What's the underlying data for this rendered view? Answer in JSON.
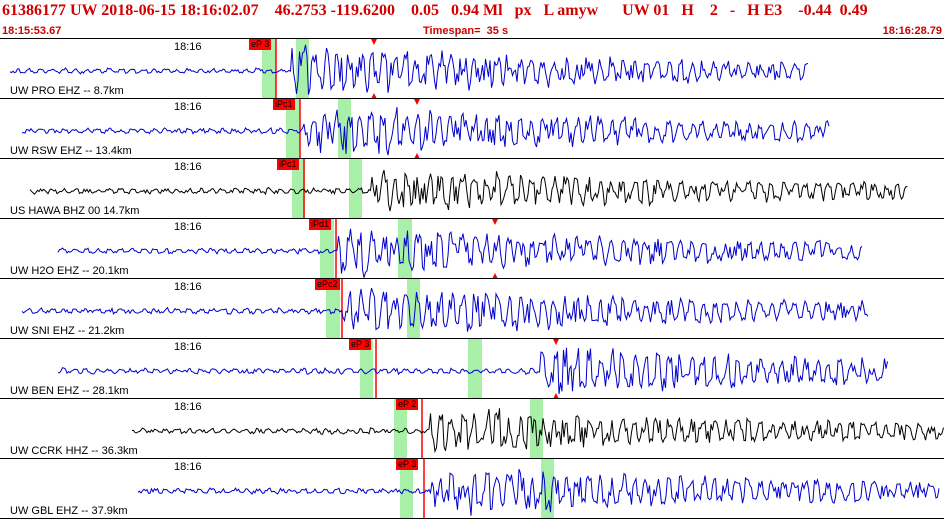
{
  "header": {
    "title": "61386177 UW 2018-06-15 18:16:02.07    46.2753 -119.6200    0.05   0.94 Ml   px   L amyw      UW 01   H    2   -   H E3    -0.44  0.49",
    "start_time": "18:15:53.67",
    "timespan": "Timespan=  35 s",
    "end_time": "18:16:28.79"
  },
  "colors": {
    "header_text": "#d00000",
    "trace_blue": "#0000cc",
    "trace_black": "#000000",
    "pick": "#ff0000",
    "window": "#a8f0a8"
  },
  "panels": [
    {
      "station": "UW PRO EHZ -- 8.7km",
      "tick": "18:16",
      "pick": "eP 3",
      "color": "#0000cc"
    },
    {
      "station": "UW RSW EHZ -- 13.4km",
      "tick": "18:16",
      "pick": "iPc1",
      "color": "#0000cc"
    },
    {
      "station": "US HAWA BHZ 00 14.7km",
      "tick": "18:16",
      "pick": "iPc1",
      "color": "#000000"
    },
    {
      "station": "UW H2O EHZ -- 20.1km",
      "tick": "18:16",
      "pick": "iPd1",
      "color": "#0000cc"
    },
    {
      "station": "UW SNI EHZ -- 21.2km",
      "tick": "18:16",
      "pick": "ePc2",
      "color": "#0000cc"
    },
    {
      "station": "UW BEN EHZ -- 28.1km",
      "tick": "18:16",
      "pick": "eP 3",
      "color": "#0000cc"
    },
    {
      "station": "UW CCRK HHZ -- 36.3km",
      "tick": "18:16",
      "pick": "eP 2",
      "color": "#000000"
    },
    {
      "station": "UW GBL EHZ -- 37.9km",
      "tick": "18:16",
      "pick": "eP 3",
      "color": "#0000cc"
    }
  ]
}
